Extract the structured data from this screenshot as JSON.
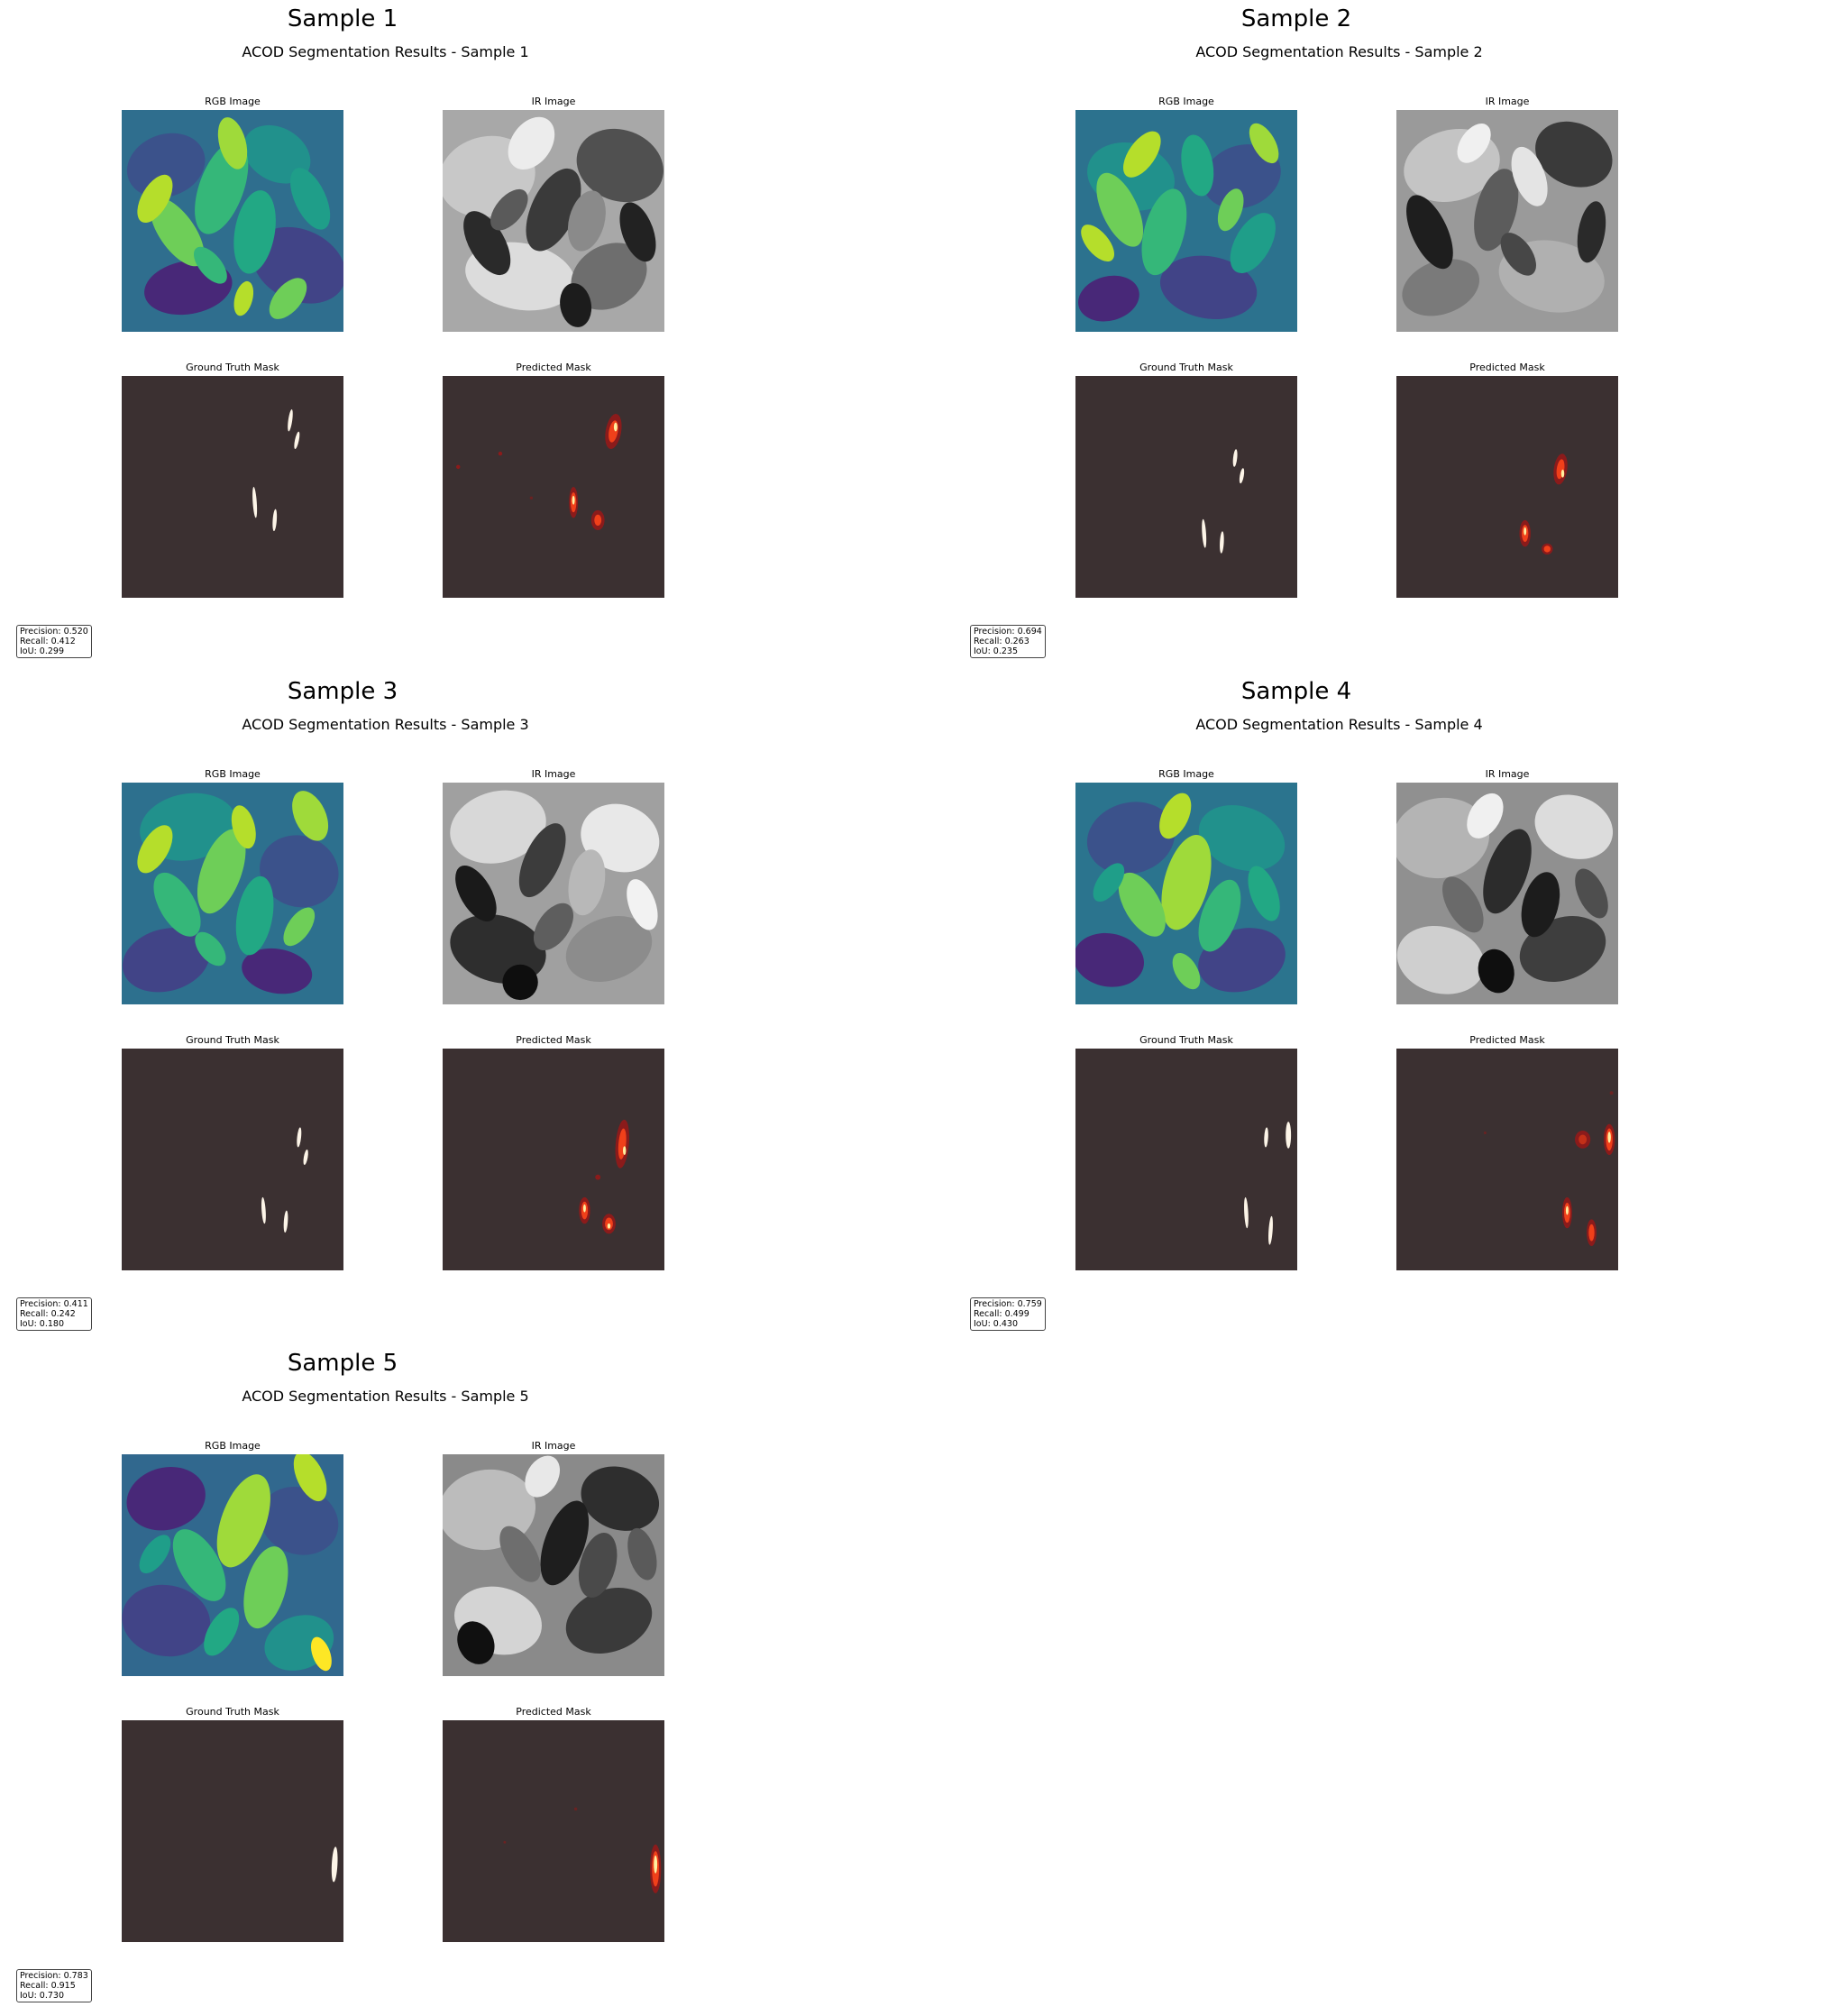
{
  "colors": {
    "mask_background": "#3b3031",
    "ground_truth_foreground": "#fdf5e8",
    "prediction_low": "#8b1b1b",
    "prediction_mid": "#f0401a",
    "prediction_high": "#fff0a0",
    "rgb_colormap": "viridis",
    "ir_colormap": "grayscale"
  },
  "panel_titles": {
    "rgb": "RGB Image",
    "ir": "IR Image",
    "ground_truth": "Ground Truth Mask",
    "predicted": "Predicted Mask"
  },
  "samples": [
    {
      "title": "Sample 1",
      "subtitle": "ACOD Segmentation Results - Sample 1",
      "metrics": {
        "precision": "Precision: 0.520",
        "recall": "Recall: 0.412",
        "iou": "IoU: 0.299"
      }
    },
    {
      "title": "Sample 2",
      "subtitle": "ACOD Segmentation Results - Sample 2",
      "metrics": {
        "precision": "Precision: 0.694",
        "recall": "Recall: 0.263",
        "iou": "IoU: 0.235"
      }
    },
    {
      "title": "Sample 3",
      "subtitle": "ACOD Segmentation Results - Sample 3",
      "metrics": {
        "precision": "Precision: 0.411",
        "recall": "Recall: 0.242",
        "iou": "IoU: 0.180"
      }
    },
    {
      "title": "Sample 4",
      "subtitle": "ACOD Segmentation Results - Sample 4",
      "metrics": {
        "precision": "Precision: 0.759",
        "recall": "Recall: 0.499",
        "iou": "IoU: 0.430"
      }
    },
    {
      "title": "Sample 5",
      "subtitle": "ACOD Segmentation Results - Sample 5",
      "metrics": {
        "precision": "Precision: 0.783",
        "recall": "Recall: 0.915",
        "iou": "IoU: 0.730"
      }
    }
  ]
}
